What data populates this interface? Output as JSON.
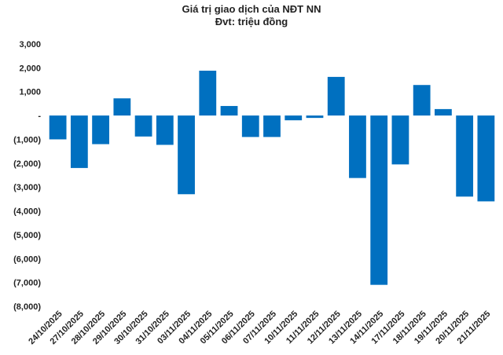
{
  "chart_data": {
    "type": "bar",
    "title": "Giá trị giao dịch của NĐT NN",
    "subtitle": "Đvt: triệu đồng",
    "xlabel": "",
    "ylabel": "",
    "ylim": [
      -8000,
      3000
    ],
    "y_ticks": [
      3000,
      2000,
      1000,
      0,
      -1000,
      -2000,
      -3000,
      -4000,
      -5000,
      -6000,
      -7000,
      -8000
    ],
    "y_tick_labels": [
      "3,000",
      "2,000",
      "1,000",
      "-",
      "(1,000)",
      "(2,000)",
      "(3,000)",
      "(4,000)",
      "(5,000)",
      "(6,000)",
      "(7,000)",
      "(8,000)"
    ],
    "grid": false,
    "bar_color": "#0070c0",
    "categories": [
      "24/10/2025",
      "27/10/2025",
      "28/10/2025",
      "29/10/2025",
      "30/10/2025",
      "31/10/2025",
      "03/11/2025",
      "04/11/2025",
      "05/11/2025",
      "06/11/2025",
      "07/11/2025",
      "10/11/2025",
      "11/11/2025",
      "12/11/2025",
      "13/11/2025",
      "14/11/2025",
      "17/11/2025",
      "18/11/2025",
      "19/11/2025",
      "20/11/2025",
      "21/11/2025"
    ],
    "values": [
      -1000,
      -2200,
      -1200,
      720,
      -880,
      -1230,
      -3300,
      1880,
      400,
      -900,
      -900,
      -200,
      -100,
      1620,
      -2620,
      -7100,
      -2050,
      1280,
      270,
      -3400,
      -3600
    ]
  }
}
